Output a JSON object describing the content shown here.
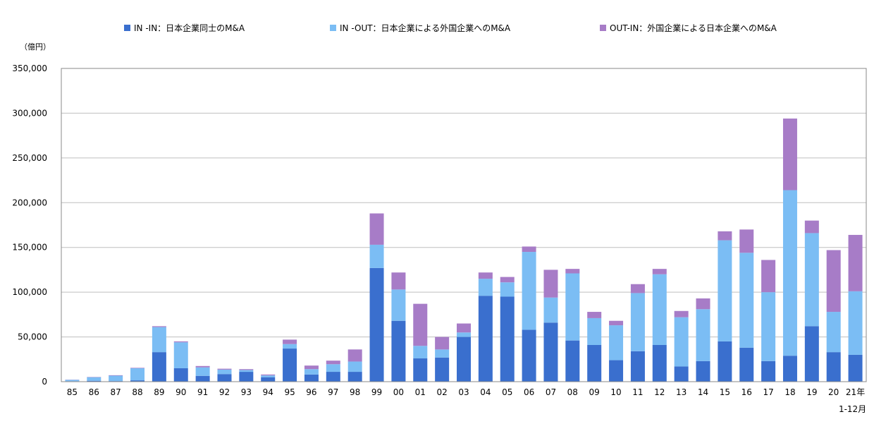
{
  "chart_data": {
    "type": "bar",
    "stacked": true,
    "unit_label": "（億円）",
    "categories": [
      "85",
      "86",
      "87",
      "88",
      "89",
      "90",
      "91",
      "92",
      "93",
      "94",
      "95",
      "96",
      "97",
      "98",
      "99",
      "00",
      "01",
      "02",
      "03",
      "04",
      "05",
      "06",
      "07",
      "08",
      "09",
      "10",
      "11",
      "12",
      "13",
      "14",
      "15",
      "16",
      "17",
      "18",
      "19",
      "20",
      "21年"
    ],
    "last_category_sublabel": "1-12月",
    "ylim": [
      0,
      350000
    ],
    "yticks": [
      0,
      50000,
      100000,
      150000,
      200000,
      250000,
      300000,
      350000
    ],
    "ytick_labels": [
      "0",
      "50,000",
      "100,000",
      "150,000",
      "200,000",
      "250,000",
      "300,000",
      "350,000"
    ],
    "grid": true,
    "legend_position": "top",
    "colors": {
      "in_in": "#3a6fce",
      "in_out": "#7bbdf4",
      "out_in": "#a77cc7"
    },
    "series": [
      {
        "name": "IN -IN：日本企業同士のM&A",
        "key": "in_in",
        "values": [
          500,
          1000,
          700,
          1500,
          33000,
          15000,
          6500,
          8500,
          11000,
          5000,
          37000,
          8000,
          11000,
          11000,
          127000,
          68000,
          26000,
          27000,
          50000,
          96000,
          95000,
          58000,
          66000,
          46000,
          41000,
          24000,
          34000,
          41000,
          17000,
          23000,
          45000,
          38000,
          23000,
          29000,
          62000,
          33000,
          30000
        ]
      },
      {
        "name": "IN -OUT：日本企業による外国企業へのM&A",
        "key": "in_out",
        "values": [
          1500,
          4000,
          6000,
          13500,
          28000,
          29000,
          9500,
          5000,
          2000,
          2000,
          5000,
          6000,
          8500,
          11500,
          26000,
          35000,
          14000,
          9000,
          5000,
          19000,
          16000,
          87000,
          28000,
          75000,
          30000,
          39000,
          65000,
          79000,
          55000,
          58000,
          113000,
          106000,
          77000,
          185000,
          104000,
          45000,
          71000
        ]
      },
      {
        "name": "OUT-IN：外国企業による日本企業へのM&A",
        "key": "out_in",
        "values": [
          200,
          300,
          500,
          500,
          1000,
          1000,
          1500,
          1000,
          1000,
          1000,
          5000,
          4000,
          4000,
          13500,
          35000,
          19000,
          47000,
          14000,
          10000,
          7000,
          6000,
          6000,
          31000,
          5000,
          7000,
          5000,
          10000,
          6000,
          7000,
          12000,
          10000,
          26000,
          36000,
          80000,
          14000,
          69000,
          63000
        ]
      }
    ]
  }
}
